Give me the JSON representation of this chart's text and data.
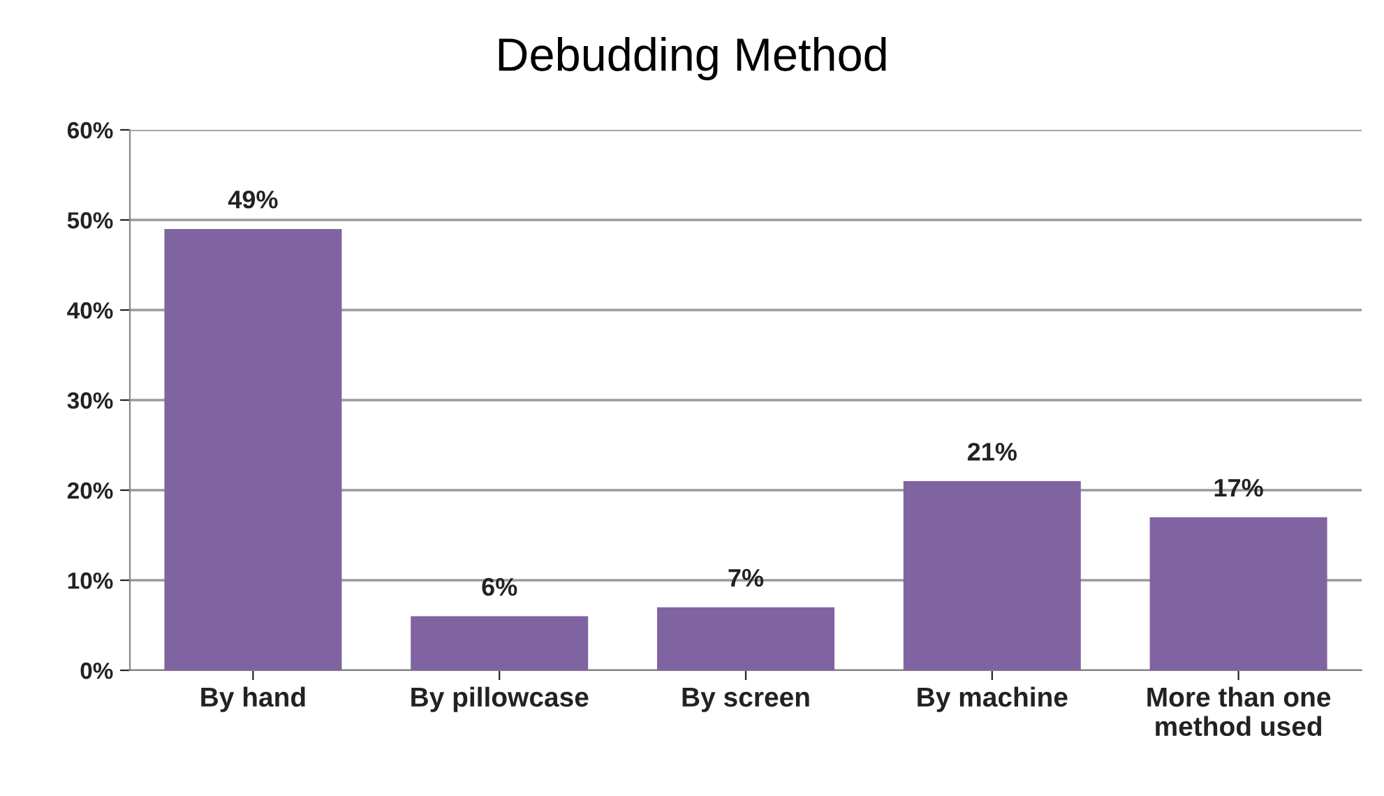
{
  "chart_data": {
    "type": "bar",
    "title": "Debudding Method",
    "categories": [
      "By hand",
      "By pillowcase",
      "By screen",
      "By machine",
      "More than one\nmethod used"
    ],
    "values": [
      49,
      6,
      7,
      21,
      17
    ],
    "color": "#8064a2",
    "ylim": [
      0,
      60
    ],
    "yticks": [
      {
        "value": 0,
        "label": "0%"
      },
      {
        "value": 10,
        "label": "10%"
      },
      {
        "value": 20,
        "label": "20%"
      },
      {
        "value": 30,
        "label": "30%"
      },
      {
        "value": 40,
        "label": "40%"
      },
      {
        "value": 50,
        "label": "50%"
      },
      {
        "value": 60,
        "label": "60%"
      }
    ],
    "value_labels": [
      "49%",
      "6%",
      "7%",
      "21%",
      "17%"
    ],
    "grid": "y",
    "legend": false
  }
}
